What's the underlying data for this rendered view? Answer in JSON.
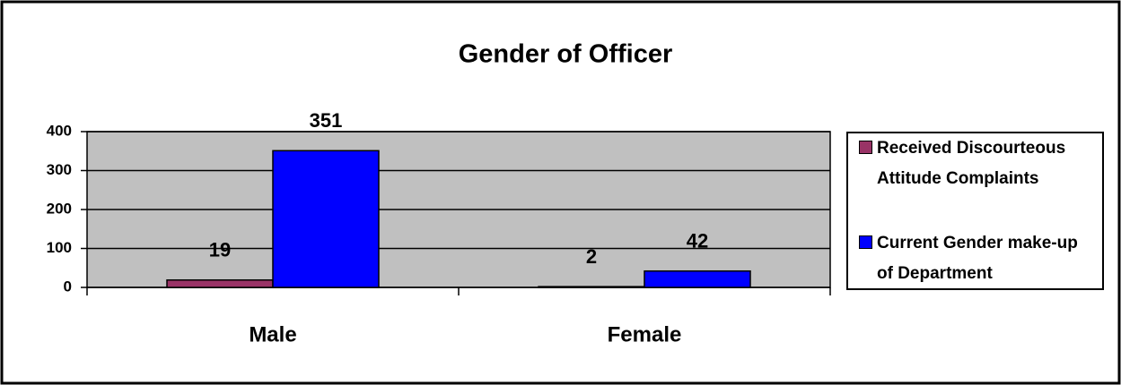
{
  "chart_data": {
    "type": "bar",
    "title": "Gender of Officer",
    "categories": [
      "Male",
      "Female"
    ],
    "series": [
      {
        "name": "Received Discourteous Attitude Complaints",
        "color": "#993366",
        "values": [
          19,
          2
        ]
      },
      {
        "name": "Current Gender make-up of Department",
        "color": "#0000ff",
        "values": [
          351,
          42
        ]
      }
    ],
    "ylim": [
      0,
      400
    ],
    "yticks": [
      0,
      100,
      200,
      300,
      400
    ],
    "grid": true,
    "legend": "right"
  }
}
